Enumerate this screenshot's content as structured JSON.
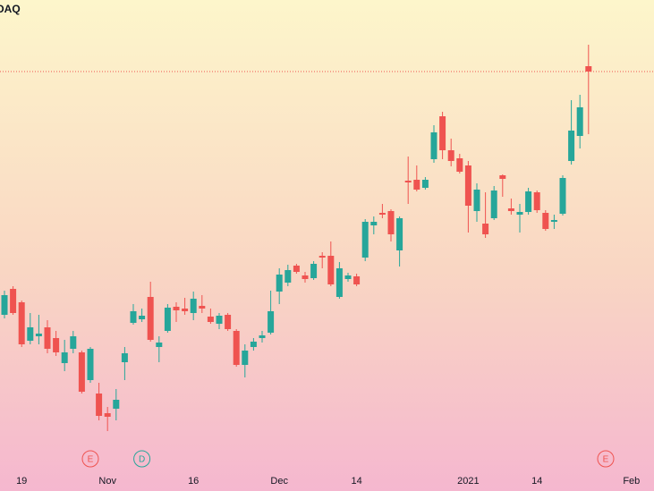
{
  "chart_data": {
    "type": "candlestick",
    "title": "DAQ",
    "categories": [
      null,
      null,
      "19",
      null,
      null,
      null,
      null,
      null,
      null,
      null,
      null,
      null,
      "Nov",
      null,
      null,
      null,
      null,
      null,
      null,
      null,
      null,
      null,
      "16",
      null,
      null,
      null,
      null,
      null,
      null,
      null,
      null,
      null,
      "Dec",
      null,
      null,
      null,
      null,
      null,
      null,
      null,
      null,
      "14",
      null,
      null,
      null,
      null,
      null,
      null,
      null,
      null,
      null,
      null,
      null,
      null,
      "2021",
      null,
      null,
      null,
      null,
      null,
      null,
      null,
      "14",
      null,
      null,
      null,
      null,
      null,
      null,
      null,
      null,
      null,
      null,
      "Feb"
    ],
    "open": [
      173,
      202,
      187,
      144,
      149,
      159,
      147,
      119,
      135,
      131,
      100,
      85,
      63,
      68,
      120,
      164,
      168,
      193,
      137,
      155,
      182,
      180,
      175,
      183,
      171,
      163,
      173,
      155,
      117,
      137,
      147,
      153,
      199,
      209,
      228,
      217,
      214,
      239,
      239,
      193,
      213,
      216,
      237,
      273,
      287,
      289,
      245,
      323,
      324,
      315,
      347,
      395,
      357,
      348,
      340,
      289,
      275,
      281,
      329,
      292,
      285,
      288,
      310,
      287,
      277,
      286,
      345,
      373,
      451,
      null,
      null,
      null,
      null,
      null
    ],
    "high": [
      200,
      205,
      189,
      175,
      173,
      167,
      155,
      145,
      155,
      133,
      137,
      97,
      70,
      90,
      137,
      185,
      180,
      210,
      149,
      185,
      187,
      192,
      199,
      195,
      180,
      175,
      175,
      157,
      140,
      147,
      155,
      200,
      225,
      229,
      230,
      221,
      233,
      243,
      255,
      232,
      220,
      219,
      280,
      283,
      297,
      291,
      283,
      350,
      340,
      327,
      385,
      400,
      370,
      353,
      345,
      320,
      310,
      317,
      330,
      303,
      297,
      315,
      312,
      290,
      285,
      329,
      413,
      419,
      475,
      null,
      null,
      null,
      null,
      null
    ],
    "low": [
      169,
      173,
      137,
      140,
      140,
      130,
      127,
      110,
      130,
      85,
      97,
      55,
      43,
      55,
      100,
      162,
      165,
      143,
      120,
      153,
      165,
      173,
      167,
      175,
      163,
      157,
      155,
      115,
      103,
      133,
      142,
      151,
      185,
      205,
      219,
      209,
      212,
      225,
      205,
      191,
      210,
      205,
      233,
      263,
      281,
      255,
      227,
      297,
      311,
      313,
      343,
      347,
      339,
      331,
      265,
      277,
      259,
      279,
      305,
      285,
      265,
      285,
      287,
      267,
      269,
      284,
      341,
      359,
      375,
      null,
      null,
      null,
      null,
      null
    ],
    "close": [
      195,
      175,
      140,
      159,
      152,
      135,
      131,
      131,
      149,
      87,
      135,
      60,
      59,
      78,
      130,
      177,
      172,
      145,
      142,
      181,
      178,
      177,
      191,
      180,
      165,
      172,
      157,
      117,
      133,
      143,
      150,
      177,
      218,
      223,
      221,
      213,
      230,
      237,
      207,
      225,
      217,
      207,
      277,
      277,
      285,
      263,
      281,
      321,
      313,
      324,
      377,
      357,
      345,
      333,
      295,
      313,
      263,
      312,
      325,
      289,
      288,
      311,
      290,
      269,
      279,
      326,
      379,
      405,
      445,
      null,
      null,
      null,
      null,
      null
    ],
    "events": [
      null,
      null,
      null,
      null,
      null,
      null,
      null,
      null,
      null,
      null,
      "E",
      null,
      null,
      null,
      null,
      null,
      "D",
      null,
      null,
      null,
      null,
      null,
      null,
      null,
      null,
      null,
      null,
      null,
      null,
      null,
      null,
      null,
      null,
      null,
      null,
      null,
      null,
      null,
      null,
      null,
      null,
      null,
      null,
      null,
      null,
      null,
      null,
      null,
      null,
      null,
      null,
      null,
      null,
      null,
      null,
      null,
      null,
      null,
      null,
      null,
      null,
      null,
      null,
      null,
      null,
      null,
      null,
      null,
      null,
      null,
      "E",
      null,
      null,
      null
    ],
    "event_colors": {
      "E": "#ef5350",
      "D": "#26a69a"
    },
    "up_color": "#26a69a",
    "down_color": "#ef5350",
    "ylim": [
      0,
      525
    ]
  }
}
